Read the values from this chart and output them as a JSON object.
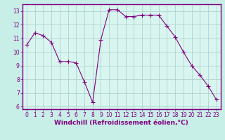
{
  "x": [
    0,
    1,
    2,
    3,
    4,
    5,
    6,
    7,
    8,
    9,
    10,
    11,
    12,
    13,
    14,
    15,
    16,
    17,
    18,
    19,
    20,
    21,
    22,
    23
  ],
  "y": [
    10.5,
    11.4,
    11.2,
    10.7,
    9.3,
    9.3,
    9.2,
    7.8,
    6.3,
    10.9,
    13.1,
    13.1,
    12.6,
    12.6,
    12.7,
    12.7,
    12.7,
    11.9,
    11.1,
    10.0,
    9.0,
    8.3,
    7.5,
    6.5
  ],
  "line_color": "#800080",
  "marker": "+",
  "marker_size": 4,
  "bg_color": "#c8eee8",
  "plot_bg_color": "#d8f5f0",
  "grid_color": "#aaccc8",
  "xlabel": "Windchill (Refroidissement éolien,°C)",
  "xlabel_color": "#800080",
  "tick_color": "#800080",
  "border_color": "#800080",
  "ylim": [
    5.8,
    13.5
  ],
  "xlim": [
    -0.5,
    23.5
  ],
  "yticks": [
    6,
    7,
    8,
    9,
    10,
    11,
    12,
    13
  ],
  "xticks": [
    0,
    1,
    2,
    3,
    4,
    5,
    6,
    7,
    8,
    9,
    10,
    11,
    12,
    13,
    14,
    15,
    16,
    17,
    18,
    19,
    20,
    21,
    22,
    23
  ],
  "tick_fontsize": 5.5,
  "xlabel_fontsize": 6.5,
  "linewidth": 0.8,
  "marker_linewidth": 0.8
}
